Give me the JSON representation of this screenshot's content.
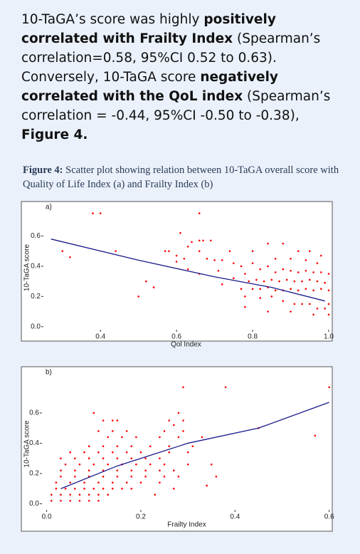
{
  "text": {
    "runs": [
      {
        "text": "10-TaGA’s score was highly ",
        "bold": false
      },
      {
        "text": "positively correlated with Frailty Index",
        "bold": true
      },
      {
        "text": " (Spearman’s correlation=0.58, 95%CI 0.52 to 0.63). Conversely, 10-TaGA score ",
        "bold": false
      },
      {
        "text": "negatively correlated with the QoL index",
        "bold": true
      },
      {
        "text": " (Spearman’s correlation = -0.44, 95%CI -0.50 to -0.38), ",
        "bold": false
      },
      {
        "text": "Figure 4.",
        "bold": true
      }
    ]
  },
  "figure_caption": {
    "label": "Figure 4:",
    "text": " Scatter plot showing relation between 10-TaGA overall score with Quality of Life Index (a) and Frailty Index (b)"
  },
  "chart_data": [
    {
      "type": "scatter",
      "panel_label": "a)",
      "x_label": "Qol Index",
      "y_label": "10-TaGA score",
      "color": "#ff0000",
      "xlim": [
        0.25,
        1.0
      ],
      "ylim": [
        -0.02,
        0.8
      ],
      "xticks": [
        0.4,
        0.6,
        0.8,
        {
          "value": 1.0,
          "label": "1.0"
        }
      ],
      "yticks": [
        {
          "value": 0,
          "label": "0.0"
        },
        0.2,
        0.4,
        0.6
      ],
      "x": [
        0.38,
        0.4,
        0.66,
        0.3,
        0.32,
        0.44,
        0.61,
        0.5,
        0.54,
        0.52,
        0.57,
        0.58,
        0.6,
        0.62,
        0.63,
        0.64,
        0.66,
        0.67,
        0.69,
        0.66,
        0.68,
        0.7,
        0.72,
        0.74,
        0.75,
        0.77,
        0.78,
        0.8,
        0.82,
        0.84,
        0.86,
        0.88,
        0.9,
        0.92,
        0.94,
        0.96,
        0.98,
        1.0,
        0.79,
        0.81,
        0.83,
        0.85,
        0.87,
        0.89,
        0.91,
        0.93,
        0.95,
        0.97,
        0.99,
        0.8,
        0.82,
        0.84,
        0.86,
        0.88,
        0.9,
        0.92,
        0.94,
        0.96,
        0.98,
        1.0,
        0.78,
        0.82,
        0.85,
        0.88,
        0.91,
        0.93,
        0.95,
        0.97,
        0.99,
        1.0,
        0.8,
        0.84,
        0.88,
        0.92,
        0.95,
        0.98,
        0.63,
        0.66,
        0.71,
        0.6,
        0.72,
        0.75,
        0.77,
        0.78,
        0.84,
        0.9,
        0.96,
        1.0,
        0.86,
        0.9,
        0.94,
        0.97
      ],
      "values": [
        0.75,
        0.75,
        0.75,
        0.5,
        0.46,
        0.5,
        0.62,
        0.2,
        0.26,
        0.3,
        0.5,
        0.5,
        0.47,
        0.45,
        0.53,
        0.56,
        0.57,
        0.57,
        0.57,
        0.5,
        0.45,
        0.44,
        0.44,
        0.5,
        0.42,
        0.4,
        0.35,
        0.42,
        0.38,
        0.4,
        0.36,
        0.38,
        0.37,
        0.36,
        0.37,
        0.36,
        0.36,
        0.35,
        0.3,
        0.31,
        0.3,
        0.31,
        0.3,
        0.31,
        0.3,
        0.3,
        0.31,
        0.3,
        0.29,
        0.25,
        0.25,
        0.26,
        0.24,
        0.24,
        0.25,
        0.24,
        0.25,
        0.24,
        0.25,
        0.24,
        0.2,
        0.19,
        0.2,
        0.17,
        0.15,
        0.15,
        0.15,
        0.12,
        0.12,
        0.15,
        0.5,
        0.55,
        0.55,
        0.5,
        0.5,
        0.47,
        0.38,
        0.35,
        0.37,
        0.43,
        0.28,
        0.32,
        0.25,
        0.13,
        0.1,
        0.1,
        0.08,
        0.08,
        0.45,
        0.45,
        0.44,
        0.42
      ],
      "fit_line": {
        "color": "#1a1a8c",
        "x": [
          0.27,
          0.5,
          0.7,
          0.85,
          0.99
        ],
        "values": [
          0.58,
          0.44,
          0.33,
          0.26,
          0.17
        ]
      }
    },
    {
      "type": "scatter",
      "panel_label": "b)",
      "x_label": "Frailty Index",
      "y_label": "10-TaGA score",
      "color": "#ff0000",
      "xlim": [
        -0.01,
        0.605
      ],
      "ylim": [
        -0.04,
        0.83
      ],
      "xticks": [
        {
          "value": 0,
          "label": "0.0"
        },
        0.2,
        0.4,
        0.6
      ],
      "yticks": [
        {
          "value": 0,
          "label": "0.0"
        },
        0.2,
        0.4,
        0.6
      ],
      "x": [
        0.01,
        0.03,
        0.05,
        0.07,
        0.09,
        0.11,
        0.01,
        0.03,
        0.05,
        0.07,
        0.09,
        0.11,
        0.13,
        0.02,
        0.04,
        0.06,
        0.08,
        0.1,
        0.12,
        0.14,
        0.16,
        0.18,
        0.02,
        0.05,
        0.08,
        0.11,
        0.14,
        0.17,
        0.2,
        0.24,
        0.03,
        0.06,
        0.09,
        0.12,
        0.15,
        0.18,
        0.21,
        0.25,
        0.28,
        0.03,
        0.06,
        0.09,
        0.12,
        0.15,
        0.18,
        0.21,
        0.24,
        0.27,
        0.04,
        0.07,
        0.1,
        0.13,
        0.16,
        0.19,
        0.22,
        0.25,
        0.3,
        0.03,
        0.06,
        0.09,
        0.12,
        0.15,
        0.18,
        0.21,
        0.24,
        0.05,
        0.08,
        0.11,
        0.14,
        0.17,
        0.2,
        0.26,
        0.3,
        0.09,
        0.12,
        0.15,
        0.18,
        0.22,
        0.26,
        0.31,
        0.13,
        0.16,
        0.19,
        0.24,
        0.28,
        0.33,
        0.11,
        0.14,
        0.17,
        0.25,
        0.29,
        0.12,
        0.14,
        0.15,
        0.26,
        0.29,
        0.27,
        0.1,
        0.28,
        0.29,
        0.38,
        0.6,
        0.45,
        0.57,
        0.23,
        0.27,
        0.36,
        0.35,
        0.34
      ],
      "values": [
        0.02,
        0.02,
        0.02,
        0.02,
        0.02,
        0.02,
        0.06,
        0.06,
        0.06,
        0.06,
        0.06,
        0.06,
        0.06,
        0.1,
        0.1,
        0.1,
        0.1,
        0.1,
        0.1,
        0.1,
        0.1,
        0.1,
        0.14,
        0.14,
        0.14,
        0.14,
        0.14,
        0.14,
        0.14,
        0.14,
        0.18,
        0.18,
        0.18,
        0.18,
        0.18,
        0.18,
        0.18,
        0.18,
        0.18,
        0.22,
        0.22,
        0.22,
        0.22,
        0.22,
        0.22,
        0.22,
        0.22,
        0.22,
        0.26,
        0.26,
        0.26,
        0.26,
        0.26,
        0.26,
        0.26,
        0.26,
        0.26,
        0.3,
        0.3,
        0.3,
        0.3,
        0.3,
        0.3,
        0.3,
        0.3,
        0.34,
        0.34,
        0.34,
        0.34,
        0.34,
        0.34,
        0.34,
        0.34,
        0.38,
        0.38,
        0.38,
        0.38,
        0.38,
        0.38,
        0.38,
        0.44,
        0.44,
        0.44,
        0.44,
        0.44,
        0.44,
        0.48,
        0.48,
        0.48,
        0.48,
        0.48,
        0.55,
        0.55,
        0.55,
        0.55,
        0.55,
        0.52,
        0.6,
        0.6,
        0.77,
        0.77,
        0.77,
        0.5,
        0.45,
        0.06,
        0.1,
        0.18,
        0.26,
        0.12
      ],
      "fit_line": {
        "color": "#1a1a8c",
        "x": [
          0.03,
          0.15,
          0.3,
          0.45,
          0.6
        ],
        "values": [
          0.1,
          0.25,
          0.4,
          0.5,
          0.67
        ]
      }
    }
  ]
}
